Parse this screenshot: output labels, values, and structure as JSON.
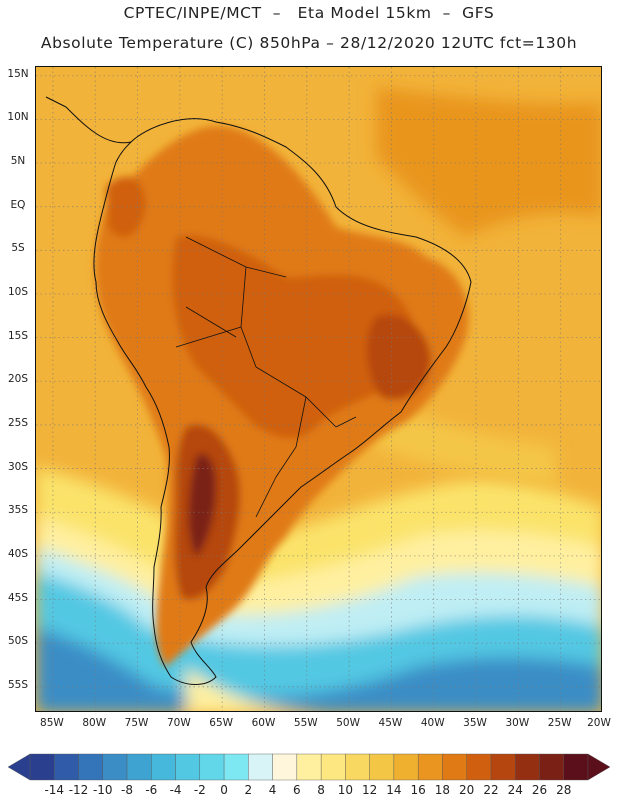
{
  "header": {
    "title_line1": "CPTEC/INPE/MCT  –   Eta Model 15km  –  GFS",
    "title_line2": "Absolute Temperature (C) 850hPa – 28/12/2020 12UTC fct=130h"
  },
  "map": {
    "lat_labels": [
      "15N",
      "10N",
      "5N",
      "EQ",
      "5S",
      "10S",
      "15S",
      "20S",
      "25S",
      "30S",
      "35S",
      "40S",
      "45S",
      "50S",
      "55S"
    ],
    "lon_labels": [
      "85W",
      "80W",
      "75W",
      "70W",
      "65W",
      "60W",
      "55W",
      "50W",
      "45W",
      "40W",
      "35W",
      "30W",
      "25W",
      "20W"
    ],
    "colors": {
      "ocean_warm": "#f2b33a",
      "land_hot": "#dc6a1e",
      "very_hot": "#9a3212",
      "cool_yellow": "#fbe36a",
      "cold_blue": "#3aa6d8"
    }
  },
  "colorbar": {
    "levels": [
      "-14",
      "-12",
      "-10",
      "-8",
      "-6",
      "-4",
      "-2",
      "0",
      "2",
      "4",
      "6",
      "8",
      "10",
      "12",
      "14",
      "16",
      "18",
      "20",
      "22",
      "24",
      "26",
      "28"
    ],
    "colors": [
      "#2b3f8f",
      "#2f5ba8",
      "#3474b8",
      "#3b8dc6",
      "#3fa3d2",
      "#46b8db",
      "#52c8e3",
      "#63d7ea",
      "#7ee8f2",
      "#d9f4f7",
      "#fff6dc",
      "#fff0a0",
      "#fde780",
      "#f9d862",
      "#f4c646",
      "#efb02f",
      "#e9951f",
      "#e07a14",
      "#d0600f",
      "#b64610",
      "#952f12",
      "#7a2014",
      "#5a0f1a"
    ]
  }
}
